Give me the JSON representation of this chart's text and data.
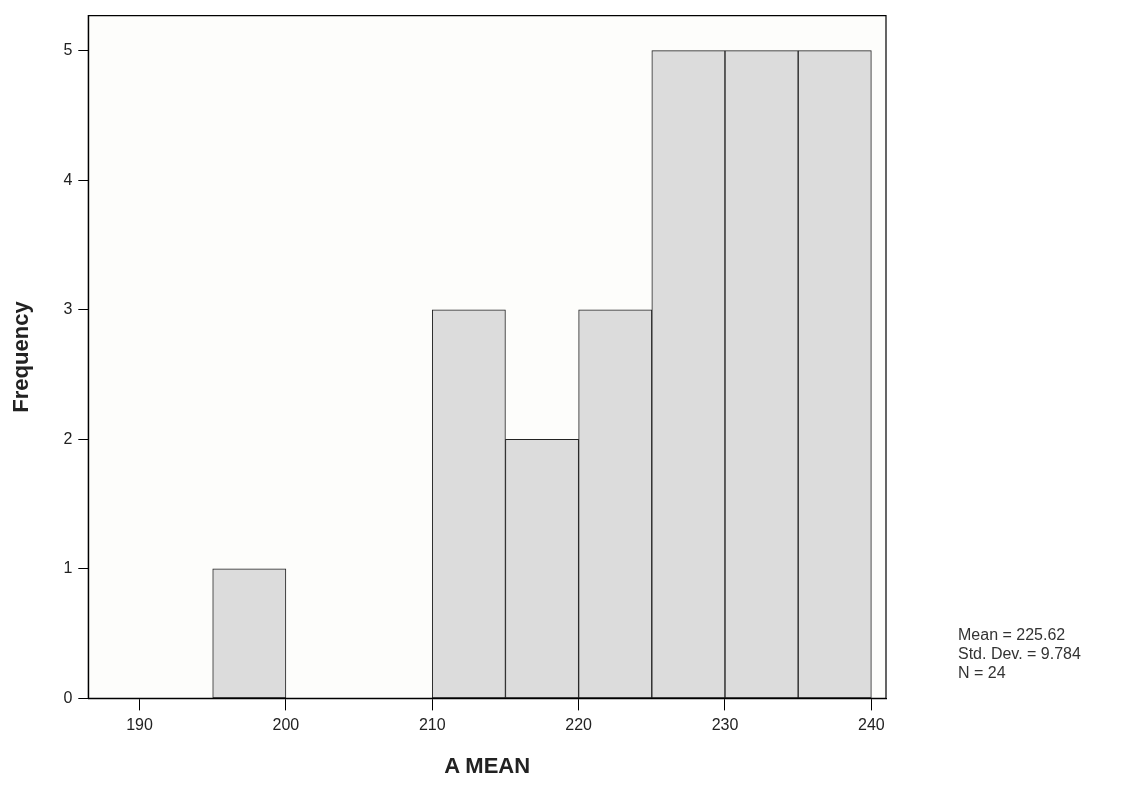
{
  "chart_data": {
    "type": "histogram",
    "xlabel": "A MEAN",
    "ylabel": "Frequency",
    "bins": [
      195,
      200,
      205,
      210,
      215,
      220,
      225,
      230,
      235,
      240
    ],
    "values": [
      1,
      0,
      0,
      3,
      2,
      3,
      5,
      5,
      5
    ],
    "color": "#dcdcdc",
    "xlim": [
      186.5,
      241
    ],
    "xticks": [
      190,
      200,
      210,
      220,
      230,
      240
    ],
    "ylim": [
      0,
      5.27
    ],
    "yticks": [
      0,
      1,
      2,
      3,
      4,
      5
    ],
    "grid": false,
    "legend": false,
    "annotations": [
      "Mean = 225.62",
      "Std. Dev. = 9.784",
      "N = 24"
    ]
  }
}
